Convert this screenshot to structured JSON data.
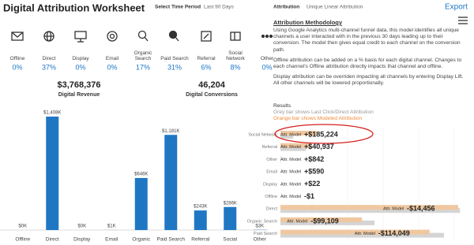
{
  "header": {
    "title": "Digital Attribution Worksheet",
    "time_label": "Select Time Period",
    "time_value": "Last 90 Days",
    "attribution_label": "Attribution",
    "attribution_value": "Unique Linear Attribution",
    "export": "Export"
  },
  "channels": [
    {
      "label": "Offline",
      "share": "0%"
    },
    {
      "label": "Direct",
      "share": "37%"
    },
    {
      "label": "Display",
      "share": "0%"
    },
    {
      "label": "Email",
      "share": "0%"
    },
    {
      "label": "Organic Search",
      "share": "17%"
    },
    {
      "label": "Paid Search",
      "share": "31%"
    },
    {
      "label": "Referral",
      "share": "6%"
    },
    {
      "label": "Social Network",
      "share": "8%"
    },
    {
      "label": "Other",
      "share": "0%"
    }
  ],
  "kpis": [
    {
      "value": "$3,768,376",
      "label": "Digital Revenue"
    },
    {
      "value": "46,204",
      "label": "Digital Conversions"
    }
  ],
  "revenue_chart": {
    "categories": [
      "Offline",
      "Direct",
      "Display",
      "Email",
      "Organic",
      "Paid Search",
      "Referral",
      "Social",
      "Other"
    ],
    "values": [
      0,
      1408,
      0,
      1,
      646,
      1181,
      243,
      286,
      3
    ],
    "value_labels": [
      "$0K",
      "$1,408K",
      "$0K",
      "$1K",
      "$646K",
      "$1,181K",
      "$243K",
      "$286K",
      "$3K"
    ],
    "color": "#1f77c4"
  },
  "methodology": {
    "title": "Attribution Methodology",
    "paragraphs": [
      "Using Google Analytics multi-channel funnel data, this model identifies all unique channels a user interacted with in the previous 30 days leading up to their conversion. The model then gives equal credit to each channel on the conversion path.",
      "Offline attribution can be added on a % basis for each digital channel. Changes to each channel's Offline attribution directly impacts that channel and offline.",
      "Display attribution can be overriden impacting all channels by entering Display Lift. All other channels will be lowered proportionally."
    ]
  },
  "results": {
    "title": "Results",
    "legend_grey": "Grey bar shows Last Click/Direct Attribution",
    "legend_orange": "Orange bar shows Modeled Attribution",
    "bar_label": "Attr. Model",
    "grey_color": "#d4d4d4",
    "orange_color": "#f0c8a0",
    "rows": [
      {
        "channel": "Social Network",
        "change": "+$185,224",
        "modeled": 286,
        "last_click": 101
      },
      {
        "channel": "Referral",
        "change": "+$40,937",
        "modeled": 243,
        "last_click": 202
      },
      {
        "channel": "Other",
        "change": "+$842",
        "modeled": 3,
        "last_click": 2
      },
      {
        "channel": "Email",
        "change": "+$590",
        "modeled": 1,
        "last_click": 0
      },
      {
        "channel": "Display",
        "change": "+$22",
        "modeled": 0,
        "last_click": 0
      },
      {
        "channel": "Offline",
        "change": "-$1",
        "modeled": 0,
        "last_click": 0
      },
      {
        "channel": "Direct",
        "change": "-$14,456",
        "modeled": 1408,
        "last_click": 1422
      },
      {
        "channel": "Organic Search",
        "change": "-$99,109",
        "modeled": 646,
        "last_click": 745
      },
      {
        "channel": "Paid Search",
        "change": "-$114,049",
        "modeled": 1181,
        "last_click": 1295
      }
    ]
  }
}
